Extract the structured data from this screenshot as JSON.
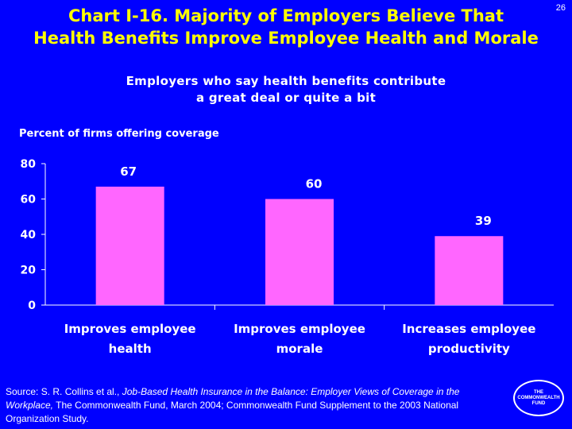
{
  "title_line1": "Chart I-16. Majority of Employers Believe That",
  "title_line2": "Health Benefits Improve Employee Health and Morale",
  "page_number": "26",
  "subtitle_line1": "Employers who say health benefits contribute",
  "subtitle_line2": "a great deal or quite a bit",
  "source": {
    "prefix": "Source: S. R. Collins et al., ",
    "italic": "Job-Based Health Insurance in the Balance: Employer Views of Coverage in the Workplace,",
    "suffix": " The Commonwealth Fund, March 2004; Commonwealth Fund Supplement to the 2003 National Organization Study."
  },
  "logo_text": "THE COMMONWEALTH FUND",
  "colors": {
    "background": "#0000ff",
    "title": "#ffff00",
    "bar": "#ff66ff",
    "text": "#ffffff"
  },
  "chart_data": {
    "type": "bar",
    "ylabel": "Percent of firms offering coverage",
    "categories": [
      [
        "Improves employee",
        "health"
      ],
      [
        "Improves employee",
        "morale"
      ],
      [
        "Increases employee",
        "productivity"
      ]
    ],
    "values": [
      67,
      60,
      39
    ],
    "ylim": [
      0,
      80
    ],
    "yticks": [
      0,
      20,
      40,
      60,
      80
    ],
    "grid": false
  }
}
